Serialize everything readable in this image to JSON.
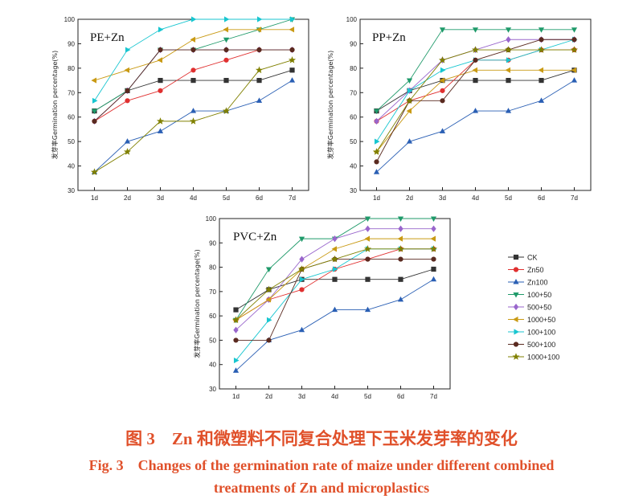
{
  "series_styles": [
    {
      "name": "CK",
      "color": "#333333",
      "marker": "square"
    },
    {
      "name": "Zn50",
      "color": "#e03030",
      "marker": "circle"
    },
    {
      "name": "Zn100",
      "color": "#2a5fb4",
      "marker": "triangle-up"
    },
    {
      "name": "100+50",
      "color": "#1f9a6a",
      "marker": "triangle-down"
    },
    {
      "name": "500+50",
      "color": "#9966cc",
      "marker": "diamond"
    },
    {
      "name": "1000+50",
      "color": "#c99a14",
      "marker": "triangle-left"
    },
    {
      "name": "100+100",
      "color": "#18c6d0",
      "marker": "triangle-right"
    },
    {
      "name": "500+100",
      "color": "#5a2a20",
      "marker": "circle"
    },
    {
      "name": "1000+100",
      "color": "#808000",
      "marker": "star"
    }
  ],
  "chart_data": [
    {
      "type": "line",
      "title": "PE+Zn",
      "ylabel": "发芽率Germination percentage(%)",
      "categories": [
        "1d",
        "2d",
        "3d",
        "4d",
        "5d",
        "6d",
        "7d"
      ],
      "ylim": [
        30,
        100
      ],
      "yticks": [
        30,
        40,
        50,
        60,
        70,
        80,
        90,
        100
      ],
      "series": [
        {
          "name": "CK",
          "values": [
            62.5,
            70.8,
            75,
            75,
            75,
            75,
            79.2
          ]
        },
        {
          "name": "Zn50",
          "values": [
            58.3,
            66.7,
            70.8,
            79.2,
            83.3,
            87.5,
            87.5
          ]
        },
        {
          "name": "Zn100",
          "values": [
            37.5,
            50,
            54.2,
            62.5,
            62.5,
            66.7,
            75
          ]
        },
        {
          "name": "100+50",
          "values": [
            62.5,
            70.8,
            87.5,
            87.5,
            91.7,
            95.8,
            100
          ]
        },
        {
          "name": "500+50",
          "values": [
            58.3,
            70.8,
            87.5,
            87.5,
            87.5,
            87.5,
            87.5
          ]
        },
        {
          "name": "1000+50",
          "values": [
            75,
            79.2,
            83.3,
            91.7,
            95.8,
            95.8,
            95.8
          ]
        },
        {
          "name": "100+100",
          "values": [
            66.7,
            87.5,
            95.8,
            100,
            100,
            100,
            100
          ]
        },
        {
          "name": "500+100",
          "values": [
            58.3,
            70.8,
            87.5,
            87.5,
            87.5,
            87.5,
            87.5
          ]
        },
        {
          "name": "1000+100",
          "values": [
            37.5,
            45.8,
            58.3,
            58.3,
            62.5,
            79.2,
            83.3
          ]
        }
      ]
    },
    {
      "type": "line",
      "title": "PP+Zn",
      "ylabel": "发芽率Germination percentage(%)",
      "categories": [
        "1d",
        "2d",
        "3d",
        "4d",
        "5d",
        "6d",
        "7d"
      ],
      "ylim": [
        30,
        100
      ],
      "yticks": [
        30,
        40,
        50,
        60,
        70,
        80,
        90,
        100
      ],
      "series": [
        {
          "name": "CK",
          "values": [
            62.5,
            70.8,
            75,
            75,
            75,
            75,
            79.2
          ]
        },
        {
          "name": "Zn50",
          "values": [
            58.3,
            66.7,
            70.8,
            83.3,
            83.3,
            87.5,
            87.5
          ]
        },
        {
          "name": "Zn100",
          "values": [
            37.5,
            50,
            54.2,
            62.5,
            62.5,
            66.7,
            75
          ]
        },
        {
          "name": "100+50",
          "values": [
            62.5,
            75,
            95.8,
            95.8,
            95.8,
            95.8,
            95.8
          ]
        },
        {
          "name": "500+50",
          "values": [
            58.3,
            70.8,
            83.3,
            87.5,
            91.7,
            91.7,
            91.7
          ]
        },
        {
          "name": "1000+50",
          "values": [
            45.8,
            62.5,
            75,
            79.2,
            79.2,
            79.2,
            79.2
          ]
        },
        {
          "name": "100+100",
          "values": [
            50,
            70.8,
            79.2,
            83.3,
            83.3,
            87.5,
            91.7
          ]
        },
        {
          "name": "500+100",
          "values": [
            41.7,
            66.7,
            66.7,
            83.3,
            87.5,
            91.7,
            91.7
          ]
        },
        {
          "name": "1000+100",
          "values": [
            45.8,
            66.7,
            83.3,
            87.5,
            87.5,
            87.5,
            87.5
          ]
        }
      ]
    },
    {
      "type": "line",
      "title": "PVC+Zn",
      "ylabel": "发芽率Germination percentage(%)",
      "categories": [
        "1d",
        "2d",
        "3d",
        "4d",
        "5d",
        "6d",
        "7d"
      ],
      "ylim": [
        30,
        100
      ],
      "yticks": [
        30,
        40,
        50,
        60,
        70,
        80,
        90,
        100
      ],
      "series": [
        {
          "name": "CK",
          "values": [
            62.5,
            70.8,
            75,
            75,
            75,
            75,
            79.2
          ]
        },
        {
          "name": "Zn50",
          "values": [
            58.3,
            66.7,
            70.8,
            79.2,
            83.3,
            87.5,
            87.5
          ]
        },
        {
          "name": "Zn100",
          "values": [
            37.5,
            50,
            54.2,
            62.5,
            62.5,
            66.7,
            75
          ]
        },
        {
          "name": "100+50",
          "values": [
            58.3,
            79.2,
            91.7,
            91.7,
            100,
            100,
            100
          ]
        },
        {
          "name": "500+50",
          "values": [
            54.2,
            66.7,
            83.3,
            91.7,
            95.8,
            95.8,
            95.8
          ]
        },
        {
          "name": "1000+50",
          "values": [
            58.3,
            66.7,
            79.2,
            87.5,
            91.7,
            91.7,
            91.7
          ]
        },
        {
          "name": "100+100",
          "values": [
            41.7,
            58.3,
            75,
            79.2,
            87.5,
            87.5,
            87.5
          ]
        },
        {
          "name": "500+100",
          "values": [
            50,
            50,
            79.2,
            83.3,
            83.3,
            83.3,
            83.3
          ]
        },
        {
          "name": "1000+100",
          "values": [
            58.3,
            70.8,
            79.2,
            83.3,
            87.5,
            87.5,
            87.5
          ]
        }
      ]
    }
  ],
  "caption": {
    "cn": "图 3　Zn 和微塑料不同复合处理下玉米发芽率的变化",
    "en_line1": "Fig. 3　Changes of the germination rate of maize under different combined",
    "en_line2": "treatments of Zn and microplastics"
  }
}
